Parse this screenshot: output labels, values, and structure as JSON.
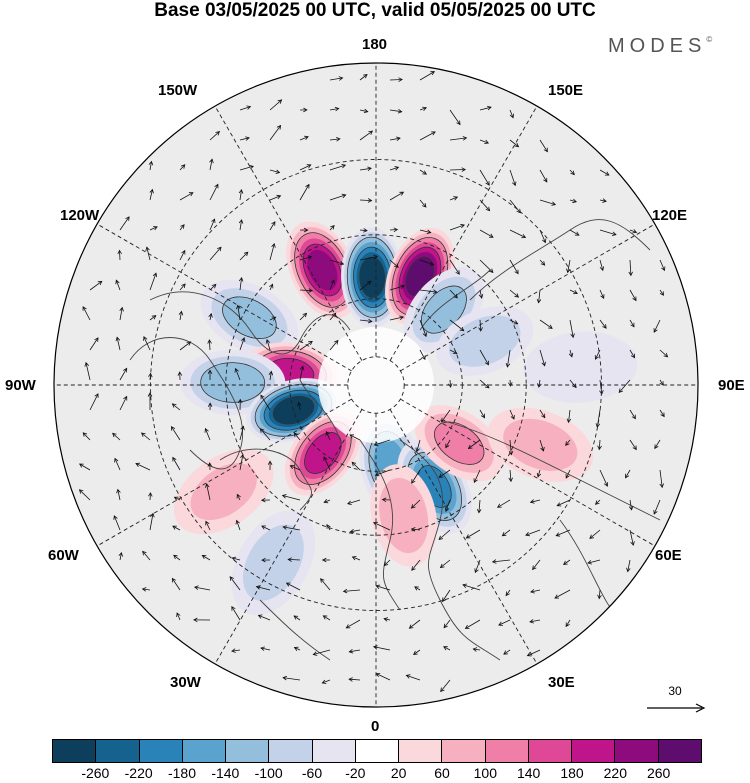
{
  "title": "Base 03/05/2025 00 UTC, valid 05/05/2025 00 UTC",
  "brand": "MODES",
  "brand_mark": "©",
  "lon_labels": {
    "top": "180",
    "bottom": "0",
    "left": "90W",
    "right": "90E",
    "upper_left_1": "150W",
    "upper_left_2": "120W",
    "upper_right_1": "150E",
    "upper_right_2": "120E",
    "lower_left_1": "60W",
    "lower_left_2": "30W",
    "lower_right_1": "60E",
    "lower_right_2": "30E"
  },
  "reference_vector": {
    "label": "30",
    "icon": "arrow-right-icon"
  },
  "colorbar": {
    "colors": [
      "#0d3e5c",
      "#15628f",
      "#2a83b8",
      "#5aa3cf",
      "#93bfdd",
      "#c3d2e8",
      "#e6e4f1",
      "#ffffff",
      "#fbd8dc",
      "#f6b0c0",
      "#ef7fa6",
      "#df4897",
      "#c0148a",
      "#8e0b7e",
      "#5e0c6d"
    ],
    "ticks": [
      "-260",
      "-220",
      "-180",
      "-140",
      "-100",
      "-60",
      "-20",
      "20",
      "60",
      "100",
      "140",
      "180",
      "220",
      "260"
    ]
  },
  "anomaly_centers": [
    {
      "lon": -155,
      "lat": 47,
      "value": 230
    },
    {
      "lon": -178,
      "lat": 53,
      "value": -270
    },
    {
      "lon": 158,
      "lat": 50,
      "value": 270
    },
    {
      "lon": 138,
      "lat": 55,
      "value": -110
    },
    {
      "lon": 112,
      "lat": 50,
      "value": -90
    },
    {
      "lon": -118,
      "lat": 42,
      "value": -110
    },
    {
      "lon": -98,
      "lat": 60,
      "value": 200
    },
    {
      "lon": -91,
      "lat": 42,
      "value": -130
    },
    {
      "lon": -73,
      "lat": 60,
      "value": -280
    },
    {
      "lon": -38,
      "lat": 60,
      "value": 200
    },
    {
      "lon": 10,
      "lat": 62,
      "value": -160
    },
    {
      "lon": 30,
      "lat": 50,
      "value": -190
    },
    {
      "lon": 12,
      "lat": 45,
      "value": 90
    },
    {
      "lon": 55,
      "lat": 55,
      "value": 110
    },
    {
      "lon": 70,
      "lat": 33,
      "value": 80
    },
    {
      "lon": 95,
      "lat": 25,
      "value": -40
    },
    {
      "lon": -30,
      "lat": 25,
      "value": -90
    },
    {
      "lon": -55,
      "lat": 30,
      "value": 70
    }
  ]
}
